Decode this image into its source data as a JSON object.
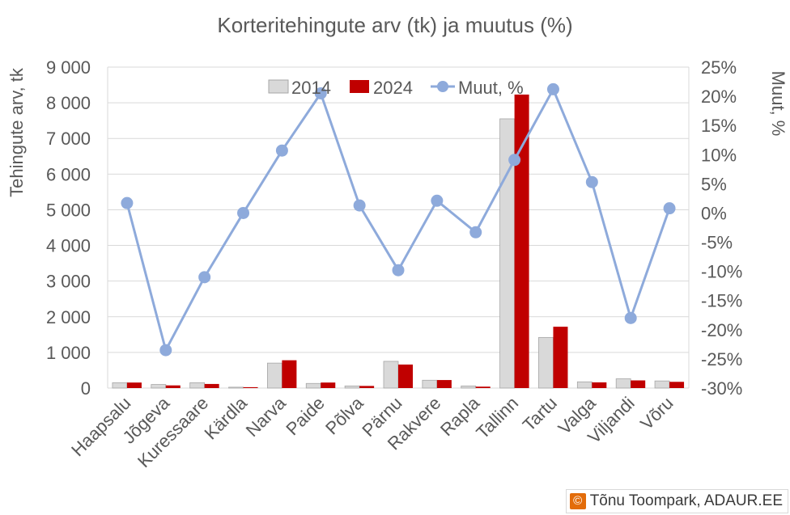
{
  "chart_data": {
    "type": "bar",
    "title": "Korteritehingute arv (tk) ja muutus (%)",
    "ylabel": "Tehingute arv, tk",
    "y2label": "Muut, %",
    "ylim": [
      0,
      9000
    ],
    "y2lim": [
      -30,
      25
    ],
    "yticks": [
      "0",
      "1 000",
      "2 000",
      "3 000",
      "4 000",
      "5 000",
      "6 000",
      "7 000",
      "8 000",
      "9 000"
    ],
    "y2ticks": [
      "-30%",
      "-25%",
      "-20%",
      "-15%",
      "-10%",
      "-5%",
      "0%",
      "5%",
      "10%",
      "15%",
      "20%",
      "25%"
    ],
    "categories": [
      "Haapsalu",
      "Jõgeva",
      "Kuressaare",
      "Kärdla",
      "Narva",
      "Paide",
      "Põlva",
      "Pärnu",
      "Rakvere",
      "Rapla",
      "Tallinn",
      "Tartu",
      "Valga",
      "Viljandi",
      "Võru"
    ],
    "series": [
      {
        "name": "2014",
        "type": "bar",
        "axis": "left",
        "color": "#d9d9d9",
        "values": [
          150,
          100,
          150,
          25,
          700,
          130,
          60,
          750,
          220,
          60,
          7550,
          1420,
          175,
          260,
          200
        ]
      },
      {
        "name": "2024",
        "type": "bar",
        "axis": "left",
        "color": "#c00000",
        "values": [
          155,
          75,
          115,
          25,
          780,
          155,
          60,
          660,
          225,
          40,
          8230,
          1720,
          160,
          215,
          175
        ]
      },
      {
        "name": "Muut, %",
        "type": "line",
        "axis": "right",
        "color": "#8eaadb",
        "values": [
          1.7,
          -23.5,
          -11,
          0,
          10.7,
          20.5,
          1.3,
          -9.8,
          2.1,
          -3.3,
          9.1,
          21.2,
          5.3,
          -18,
          0.8
        ]
      }
    ],
    "legend": "top-center",
    "grid": true
  },
  "credit": {
    "icon": "©",
    "text": "Tõnu Toompark, ADAUR.EE"
  }
}
